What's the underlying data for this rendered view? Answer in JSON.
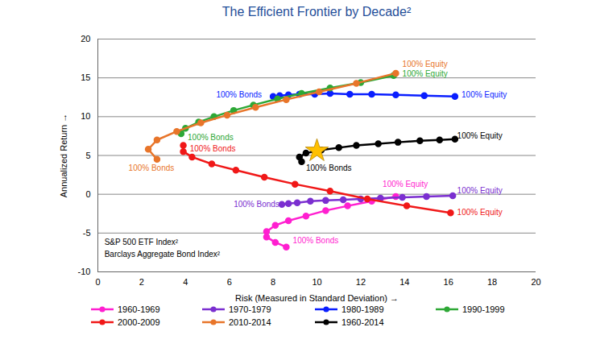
{
  "chart_data": {
    "type": "line",
    "title": "The Efficient Frontier by Decade²",
    "x_label": "Risk (Measured in Standard Deviation)",
    "y_label": "Annualized Return",
    "xlim": [
      0,
      20
    ],
    "xticks": [
      0,
      2,
      4,
      6,
      8,
      10,
      12,
      14,
      16,
      18,
      20
    ],
    "ylim": [
      -10,
      20
    ],
    "yticks": [
      -10,
      -5,
      0,
      5,
      10,
      15,
      20
    ],
    "grid": "y",
    "legend": "bottom",
    "marker": "circle",
    "line_style": "solid",
    "series": [
      {
        "name": "1960-1969",
        "color": "#ff1fd0",
        "x": [
          8.6,
          8.1,
          7.7,
          7.7,
          8.1,
          8.7,
          9.5,
          10.4,
          11.4,
          12.5,
          13.6
        ],
        "values": [
          -6.8,
          -6.2,
          -5.5,
          -4.8,
          -4.0,
          -3.4,
          -2.8,
          -2.1,
          -1.5,
          -0.9,
          -0.3
        ]
      },
      {
        "name": "1970-1979",
        "color": "#7b2fd0",
        "x": [
          8.4,
          8.7,
          9.1,
          9.7,
          10.4,
          11.2,
          12.0,
          12.9,
          13.9,
          15.0,
          16.2
        ],
        "values": [
          -1.3,
          -1.2,
          -1.1,
          -0.9,
          -0.8,
          -0.7,
          -0.6,
          -0.5,
          -0.4,
          -0.3,
          -0.2
        ]
      },
      {
        "name": "1980-1989",
        "color": "#0a1eff",
        "x": [
          8.0,
          8.3,
          8.7,
          9.2,
          9.9,
          10.6,
          11.5,
          12.5,
          13.6,
          14.9,
          16.3
        ],
        "values": [
          12.6,
          12.7,
          12.8,
          12.9,
          12.9,
          13.0,
          12.9,
          12.9,
          12.8,
          12.7,
          12.6
        ]
      },
      {
        "name": "1990-1999",
        "color": "#2ea836",
        "x": [
          3.8,
          4.0,
          4.6,
          5.3,
          6.2,
          7.1,
          8.2,
          9.3,
          10.6,
          12.0,
          13.5
        ],
        "values": [
          7.8,
          8.5,
          9.3,
          10.0,
          10.8,
          11.5,
          12.3,
          13.0,
          13.7,
          14.4,
          15.3
        ]
      },
      {
        "name": "2000-2009",
        "color": "#f01818",
        "x": [
          3.9,
          3.9,
          4.3,
          5.2,
          6.3,
          7.6,
          9.0,
          10.6,
          12.3,
          14.1,
          16.1
        ],
        "values": [
          6.3,
          5.5,
          4.8,
          3.9,
          3.1,
          2.2,
          1.3,
          0.4,
          -0.6,
          -1.5,
          -2.4
        ]
      },
      {
        "name": "2010-2014",
        "color": "#e8752a",
        "x": [
          2.7,
          2.3,
          2.7,
          3.6,
          4.7,
          5.9,
          7.2,
          8.6,
          10.1,
          11.8,
          13.6
        ],
        "values": [
          4.5,
          5.8,
          7.0,
          8.1,
          9.2,
          10.2,
          11.2,
          12.2,
          13.2,
          14.3,
          15.6
        ]
      },
      {
        "name": "1960-2014",
        "color": "#000000",
        "x": [
          9.3,
          9.2,
          9.5,
          10.2,
          11.0,
          11.8,
          12.8,
          13.7,
          14.7,
          15.6,
          16.3
        ],
        "values": [
          4.2,
          4.8,
          5.3,
          5.7,
          6.0,
          6.3,
          6.5,
          6.7,
          6.9,
          7.0,
          7.1
        ]
      }
    ],
    "highlight": {
      "x": 10.0,
      "y": 5.6,
      "marker": "star",
      "color": "#ffc000"
    },
    "annotations": [
      {
        "text": "100% Bonds",
        "x": 8.9,
        "y": -6.0,
        "color": "#ff1fd0"
      },
      {
        "text": "100% Equity",
        "x": 13.0,
        "y": 1.3,
        "color": "#ff1fd0"
      },
      {
        "text": "100% Bonds",
        "x": 6.2,
        "y": -1.3,
        "color": "#7b2fd0"
      },
      {
        "text": "100% Equity",
        "x": 16.4,
        "y": 0.5,
        "color": "#7b2fd0"
      },
      {
        "text": "100% Bonds",
        "x": 5.4,
        "y": 12.8,
        "color": "#0a1eff"
      },
      {
        "text": "100% Equity",
        "x": 16.6,
        "y": 12.8,
        "color": "#0a1eff"
      },
      {
        "text": "100% Bonds",
        "x": 4.1,
        "y": 7.3,
        "color": "#2ea836"
      },
      {
        "text": "100% Equity",
        "x": 13.9,
        "y": 15.5,
        "color": "#2ea836"
      },
      {
        "text": "100% Bonds",
        "x": 4.2,
        "y": 5.9,
        "color": "#f01818"
      },
      {
        "text": "100% Equity",
        "x": 16.4,
        "y": -2.3,
        "color": "#f01818"
      },
      {
        "text": "100% Bonds",
        "x": 1.4,
        "y": 3.4,
        "color": "#e8752a"
      },
      {
        "text": "100% Equity",
        "x": 13.9,
        "y": 16.7,
        "color": "#e8752a"
      },
      {
        "text": "100% Bonds",
        "x": 9.5,
        "y": 3.4,
        "color": "#000000"
      },
      {
        "text": "100% Equity",
        "x": 16.4,
        "y": 7.5,
        "color": "#000000"
      },
      {
        "text": "S&P 500 ETF Index²",
        "x": 0.3,
        "y": -6.2,
        "color": "#000000"
      },
      {
        "text": "Barclays Aggregate Bond Index²",
        "x": 0.3,
        "y": -7.7,
        "color": "#000000"
      }
    ]
  }
}
